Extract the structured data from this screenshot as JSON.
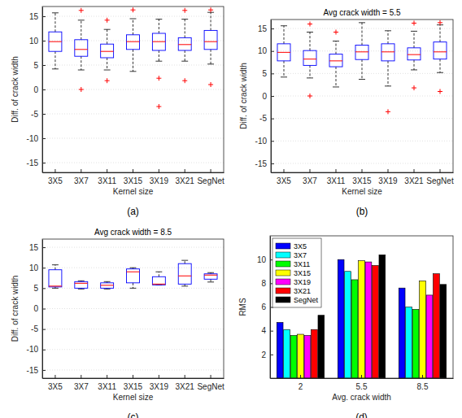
{
  "chart_data": [
    {
      "type": "box",
      "caption": "(a)",
      "x_label": "Kernel size",
      "y_label": "Diff. of crack width",
      "categories": [
        "3X5",
        "3X7",
        "3X11",
        "3X15",
        "3X19",
        "3X21",
        "SegNet"
      ],
      "ylim": [
        -17,
        17
      ],
      "yticks": [
        -15,
        -10,
        -5,
        0,
        5,
        10,
        15
      ],
      "grid": true,
      "color": "#0000ff",
      "boxes": [
        {
          "whisker_low": 4.2,
          "q1": 7.8,
          "median": 9.8,
          "q3": 11.8,
          "whisker_high": 15.7,
          "outliers": []
        },
        {
          "whisker_low": 4.0,
          "q1": 6.8,
          "median": 8.2,
          "q3": 10.2,
          "whisker_high": 14.2,
          "outliers": [
            0,
            16.2
          ]
        },
        {
          "whisker_low": 4.0,
          "q1": 6.5,
          "median": 7.8,
          "q3": 9.3,
          "whisker_high": 12.3,
          "outliers": [
            1.8,
            14.2
          ]
        },
        {
          "whisker_low": 3.7,
          "q1": 8.2,
          "median": 9.8,
          "q3": 11.2,
          "whisker_high": 14.5,
          "outliers": [
            16.3
          ]
        },
        {
          "whisker_low": 5.8,
          "q1": 8.0,
          "median": 9.8,
          "q3": 11.5,
          "whisker_high": 14.4,
          "outliers": [
            2.3,
            -3.5
          ]
        },
        {
          "whisker_low": 5.8,
          "q1": 8.0,
          "median": 9.2,
          "q3": 10.6,
          "whisker_high": 14.4,
          "outliers": [
            1.8,
            16.2
          ]
        },
        {
          "whisker_low": 5.2,
          "q1": 8.2,
          "median": 9.8,
          "q3": 12.1,
          "whisker_high": 15.8,
          "outliers": [
            1.0,
            16.3
          ]
        }
      ]
    },
    {
      "type": "box",
      "title": "Avg crack width = 5.5",
      "caption": "(b)",
      "x_label": "Kernel size",
      "y_label": "Diff. of crack width",
      "categories": [
        "3X5",
        "3X7",
        "3X11",
        "3X15",
        "3X19",
        "3X21",
        "SegNet"
      ],
      "ylim": [
        -17,
        17
      ],
      "yticks": [
        -15,
        -10,
        -5,
        0,
        5,
        10,
        15
      ],
      "grid": true,
      "color": "#0000ff",
      "boxes": [
        {
          "whisker_low": 4.2,
          "q1": 7.8,
          "median": 9.7,
          "q3": 11.6,
          "whisker_high": 15.6,
          "outliers": []
        },
        {
          "whisker_low": 4.0,
          "q1": 6.8,
          "median": 8.2,
          "q3": 10.1,
          "whisker_high": 14.2,
          "outliers": [
            0,
            16.0
          ]
        },
        {
          "whisker_low": 2.0,
          "q1": 6.5,
          "median": 7.8,
          "q3": 9.3,
          "whisker_high": 12.2,
          "outliers": [
            14.2
          ]
        },
        {
          "whisker_low": 3.7,
          "q1": 8.1,
          "median": 9.8,
          "q3": 11.3,
          "whisker_high": 16.3,
          "outliers": []
        },
        {
          "whisker_low": 2.2,
          "q1": 7.8,
          "median": 9.8,
          "q3": 11.6,
          "whisker_high": 14.5,
          "outliers": [
            -3.5
          ]
        },
        {
          "whisker_low": 5.8,
          "q1": 8.0,
          "median": 9.2,
          "q3": 10.7,
          "whisker_high": 14.4,
          "outliers": [
            1.8,
            16.2
          ]
        },
        {
          "whisker_low": 5.2,
          "q1": 8.2,
          "median": 9.8,
          "q3": 12.0,
          "whisker_high": 15.8,
          "outliers": [
            1.0,
            16.3
          ]
        }
      ]
    },
    {
      "type": "box",
      "title": "Avg crack width = 8.5",
      "caption": "(c)",
      "x_label": "Kernel size",
      "y_label": "Diff. of crack width",
      "categories": [
        "3X5",
        "3X7",
        "3X11",
        "3X15",
        "3X19",
        "3X21",
        "SegNet"
      ],
      "ylim": [
        -17,
        17
      ],
      "yticks": [
        -15,
        -10,
        -5,
        0,
        5,
        10,
        15
      ],
      "grid": true,
      "color": "#0000ff",
      "boxes": [
        {
          "whisker_low": 5.0,
          "q1": 5.3,
          "median": 5.5,
          "q3": 9.5,
          "whisker_high": 10.7,
          "outliers": []
        },
        {
          "whisker_low": 4.8,
          "q1": 5.0,
          "median": 6.2,
          "q3": 6.6,
          "whisker_high": 6.8,
          "outliers": []
        },
        {
          "whisker_low": 4.8,
          "q1": 5.0,
          "median": 5.7,
          "q3": 6.3,
          "whisker_high": 6.6,
          "outliers": []
        },
        {
          "whisker_low": 5.0,
          "q1": 6.3,
          "median": 9.0,
          "q3": 9.7,
          "whisker_high": 10.0,
          "outliers": []
        },
        {
          "whisker_low": 5.8,
          "q1": 5.8,
          "median": 6.0,
          "q3": 7.8,
          "whisker_high": 9.0,
          "outliers": []
        },
        {
          "whisker_low": 5.5,
          "q1": 6.0,
          "median": 8.0,
          "q3": 11.0,
          "whisker_high": 11.8,
          "outliers": []
        },
        {
          "whisker_low": 6.5,
          "q1": 7.2,
          "median": 8.2,
          "q3": 8.5,
          "whisker_high": 8.8,
          "outliers": []
        }
      ]
    },
    {
      "type": "bar",
      "caption": "(d)",
      "x_label": "Avg. crack width",
      "y_label": "RMS",
      "categories": [
        "2",
        "5.5",
        "8.5"
      ],
      "ylim": [
        0,
        12
      ],
      "yticks": [
        2,
        4,
        6,
        8,
        10
      ],
      "legend": "upper left",
      "series": [
        {
          "name": "3X5",
          "color": "#0000ff",
          "values": [
            4.7,
            10.0,
            7.6
          ]
        },
        {
          "name": "3X7",
          "color": "#00ffff",
          "values": [
            4.1,
            9.0,
            6.0
          ]
        },
        {
          "name": "3X11",
          "color": "#00ff00",
          "values": [
            3.6,
            8.3,
            5.8
          ]
        },
        {
          "name": "3X15",
          "color": "#ffff00",
          "values": [
            3.7,
            9.9,
            8.2
          ]
        },
        {
          "name": "3X19",
          "color": "#ff00ff",
          "values": [
            3.6,
            9.8,
            7.0
          ]
        },
        {
          "name": "3X21",
          "color": "#ff0000",
          "values": [
            4.1,
            9.5,
            8.8
          ]
        },
        {
          "name": "SegNet",
          "color": "#000000",
          "values": [
            5.3,
            10.4,
            7.9
          ]
        }
      ]
    }
  ]
}
